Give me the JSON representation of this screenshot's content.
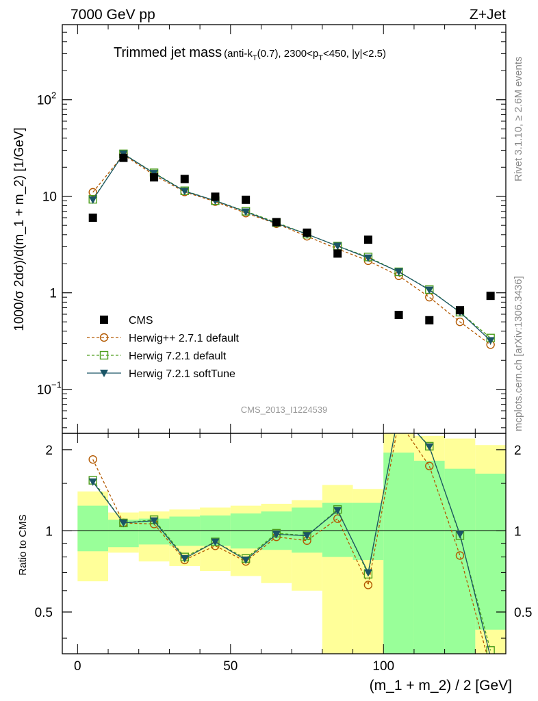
{
  "header": {
    "energy": "7000 GeV pp",
    "process": "Z+Jet"
  },
  "side_labels": {
    "rivet": "Rivet 3.1.10, ≥ 2.6M events",
    "mcplots": "mcplots.cern.ch [arXiv:1306.3436]"
  },
  "chart_data": [
    {
      "type": "scatter",
      "title": "Trimmed jet mass",
      "title_parts": {
        "main": "Trimmed jet mass",
        "sub_a": "(anti-k",
        "sub_a_sub": "T",
        "sub_b": "(0.7), 2300<p",
        "sub_b_sub": "T",
        "sub_c": "<450, |y|<2.5)"
      },
      "ylabel": "1000/σ 2dσ)/d(m_1 + m_2) [1/GeV]",
      "yscale": "log",
      "ylim": [
        0.035,
        600
      ],
      "xlim": [
        -5,
        140
      ],
      "yticks": [
        {
          "value": 0.1,
          "base": "10",
          "exp": "−1"
        },
        {
          "value": 1,
          "base": "1",
          "exp": ""
        },
        {
          "value": 10,
          "base": "10",
          "exp": ""
        },
        {
          "value": 100,
          "base": "10",
          "exp": "2"
        }
      ],
      "watermark": "CMS_2013_I1224539",
      "x": [
        5,
        15,
        25,
        35,
        45,
        55,
        65,
        75,
        85,
        95,
        105,
        115,
        125,
        135
      ],
      "series": [
        {
          "name": "CMS",
          "color": "#000000",
          "marker": "square",
          "values": [
            6.0,
            25,
            15.7,
            15.1,
            9.9,
            9.2,
            5.4,
            4.2,
            2.55,
            3.55,
            0.59,
            0.52,
            0.66,
            0.93
          ]
        },
        {
          "name": "Herwig++ 2.7.1 default",
          "color": "#b35900",
          "marker": "circle-open",
          "dash": "4,3",
          "values": [
            11,
            27,
            16.6,
            11.1,
            8.8,
            6.7,
            5.2,
            3.85,
            2.85,
            2.15,
            1.5,
            0.9,
            0.5,
            0.29
          ]
        },
        {
          "name": "Herwig 7.2.1 default",
          "color": "#4d9e1c",
          "marker": "square-open",
          "dash": "4,3",
          "values": [
            9.3,
            27.5,
            17.5,
            11.4,
            9.0,
            7.0,
            5.35,
            4.05,
            3.05,
            2.35,
            1.65,
            1.08,
            0.63,
            0.34
          ]
        },
        {
          "name": "Herwig 7.2.1 softTune",
          "color": "#1a5566",
          "marker": "triangle-down",
          "dash": "",
          "values": [
            9.2,
            27.5,
            17.3,
            11.3,
            9.0,
            6.9,
            5.25,
            4.05,
            3.05,
            2.3,
            1.65,
            1.07,
            0.63,
            0.32
          ]
        }
      ],
      "legend": {
        "placement": "bottom-left"
      }
    },
    {
      "type": "line",
      "ylabel": "Ratio to CMS",
      "xlabel": "(m_1 + m_2) / 2 [GeV]",
      "ylim": [
        0.35,
        2.3
      ],
      "xlim": [
        -5,
        140
      ],
      "yticks": [
        0.5,
        1,
        2
      ],
      "xticks": [
        0,
        50,
        100
      ],
      "x": [
        5,
        15,
        25,
        35,
        45,
        55,
        65,
        75,
        85,
        95,
        105,
        115,
        125,
        135
      ],
      "bands": {
        "stat_color": "#99ff99",
        "total_color": "#ffff99",
        "bins": [
          {
            "x0": 0,
            "x1": 10,
            "g_lo": 0.84,
            "g_hi": 1.24,
            "y_lo": 0.65,
            "y_hi": 1.4
          },
          {
            "x0": 10,
            "x1": 20,
            "g_lo": 0.87,
            "g_hi": 1.1,
            "y_lo": 0.83,
            "y_hi": 1.17
          },
          {
            "x0": 20,
            "x1": 30,
            "g_lo": 0.89,
            "g_hi": 1.11,
            "y_lo": 0.77,
            "y_hi": 1.18
          },
          {
            "x0": 30,
            "x1": 40,
            "g_lo": 0.88,
            "g_hi": 1.13,
            "y_lo": 0.74,
            "y_hi": 1.2
          },
          {
            "x0": 40,
            "x1": 50,
            "g_lo": 0.88,
            "g_hi": 1.14,
            "y_lo": 0.71,
            "y_hi": 1.22
          },
          {
            "x0": 50,
            "x1": 60,
            "g_lo": 0.86,
            "g_hi": 1.16,
            "y_lo": 0.68,
            "y_hi": 1.24
          },
          {
            "x0": 60,
            "x1": 70,
            "g_lo": 0.85,
            "g_hi": 1.18,
            "y_lo": 0.64,
            "y_hi": 1.26
          },
          {
            "x0": 70,
            "x1": 80,
            "g_lo": 0.83,
            "g_hi": 1.22,
            "y_lo": 0.6,
            "y_hi": 1.3
          },
          {
            "x0": 80,
            "x1": 90,
            "g_lo": 0.8,
            "g_hi": 1.27,
            "y_lo": 0.35,
            "y_hi": 1.48
          },
          {
            "x0": 90,
            "x1": 100,
            "g_lo": 0.78,
            "g_hi": 1.27,
            "y_lo": 0.35,
            "y_hi": 1.43
          },
          {
            "x0": 100,
            "x1": 110,
            "g_lo": 0.35,
            "g_hi": 1.95,
            "y_lo": 0.35,
            "y_hi": 2.3
          },
          {
            "x0": 110,
            "x1": 120,
            "g_lo": 0.35,
            "g_hi": 1.82,
            "y_lo": 0.35,
            "y_hi": 2.25
          },
          {
            "x0": 120,
            "x1": 130,
            "g_lo": 0.35,
            "g_hi": 1.7,
            "y_lo": 0.35,
            "y_hi": 2.2
          },
          {
            "x0": 130,
            "x1": 140,
            "g_lo": 0.43,
            "g_hi": 1.63,
            "y_lo": 0.35,
            "y_hi": 2.08
          }
        ]
      },
      "series": [
        {
          "name": "Herwig++ 2.7.1 default",
          "color": "#b35900",
          "marker": "circle-open",
          "dash": "4,3",
          "values": [
            1.84,
            1.07,
            1.06,
            0.78,
            0.88,
            0.77,
            0.95,
            0.92,
            1.11,
            0.63,
            2.55,
            1.74,
            0.81,
            0.31
          ]
        },
        {
          "name": "Herwig 7.2.1 default",
          "color": "#4d9e1c",
          "marker": "square-open",
          "dash": "4,3",
          "values": [
            1.54,
            1.07,
            1.1,
            0.8,
            0.91,
            0.79,
            0.98,
            0.96,
            1.2,
            0.69,
            2.75,
            2.06,
            0.96,
            0.36
          ]
        },
        {
          "name": "Herwig 7.2.1 softTune",
          "color": "#1a5566",
          "marker": "triangle-down",
          "dash": "",
          "values": [
            1.52,
            1.07,
            1.09,
            0.79,
            0.91,
            0.78,
            0.97,
            0.96,
            1.19,
            0.7,
            2.75,
            2.05,
            0.97,
            0.34
          ]
        }
      ]
    }
  ]
}
